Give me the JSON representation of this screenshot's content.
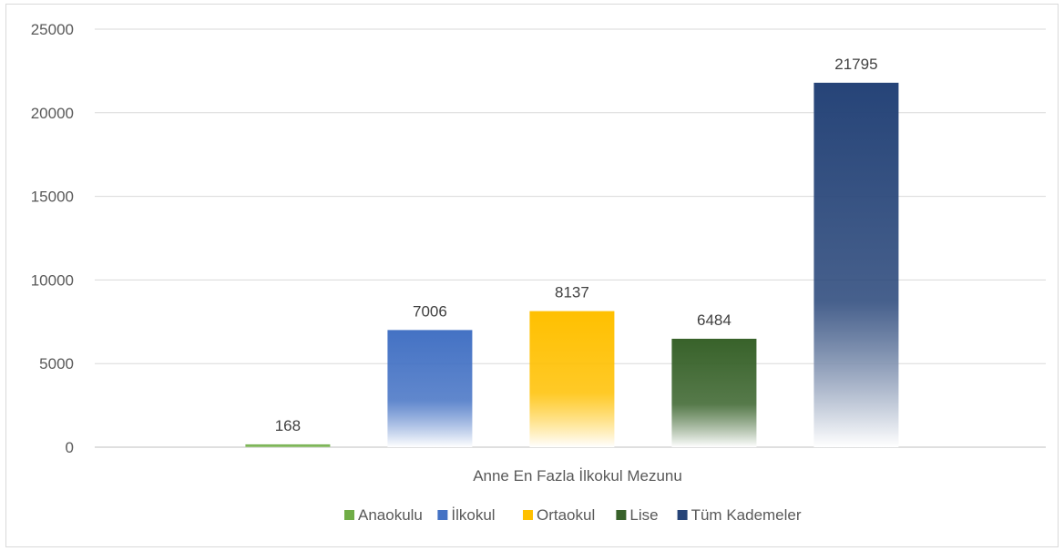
{
  "chart_data": {
    "type": "bar",
    "categories": [
      "Anne En Fazla İlkokul Mezunu"
    ],
    "series": [
      {
        "name": "Anaokulu",
        "values": [
          168
        ],
        "color": "#70AD47",
        "fade": "#A9D18E"
      },
      {
        "name": "İlkokul",
        "values": [
          7006
        ],
        "color": "#4472C4",
        "fade": "#FFFFFF"
      },
      {
        "name": "Ortaokul",
        "values": [
          8137
        ],
        "color": "#FFC000",
        "fade": "#FFFFFF"
      },
      {
        "name": "Lise",
        "values": [
          6484
        ],
        "color": "#38622A",
        "fade": "#FFFFFF"
      },
      {
        "name": "Tüm Kademeler",
        "values": [
          21795
        ],
        "color": "#264478",
        "fade": "#FFFFFF"
      }
    ],
    "ylim": [
      0,
      25000
    ],
    "yticks": [
      0,
      5000,
      10000,
      15000,
      20000,
      25000
    ],
    "grid": true,
    "data_labels": true,
    "legend_position": "bottom"
  }
}
